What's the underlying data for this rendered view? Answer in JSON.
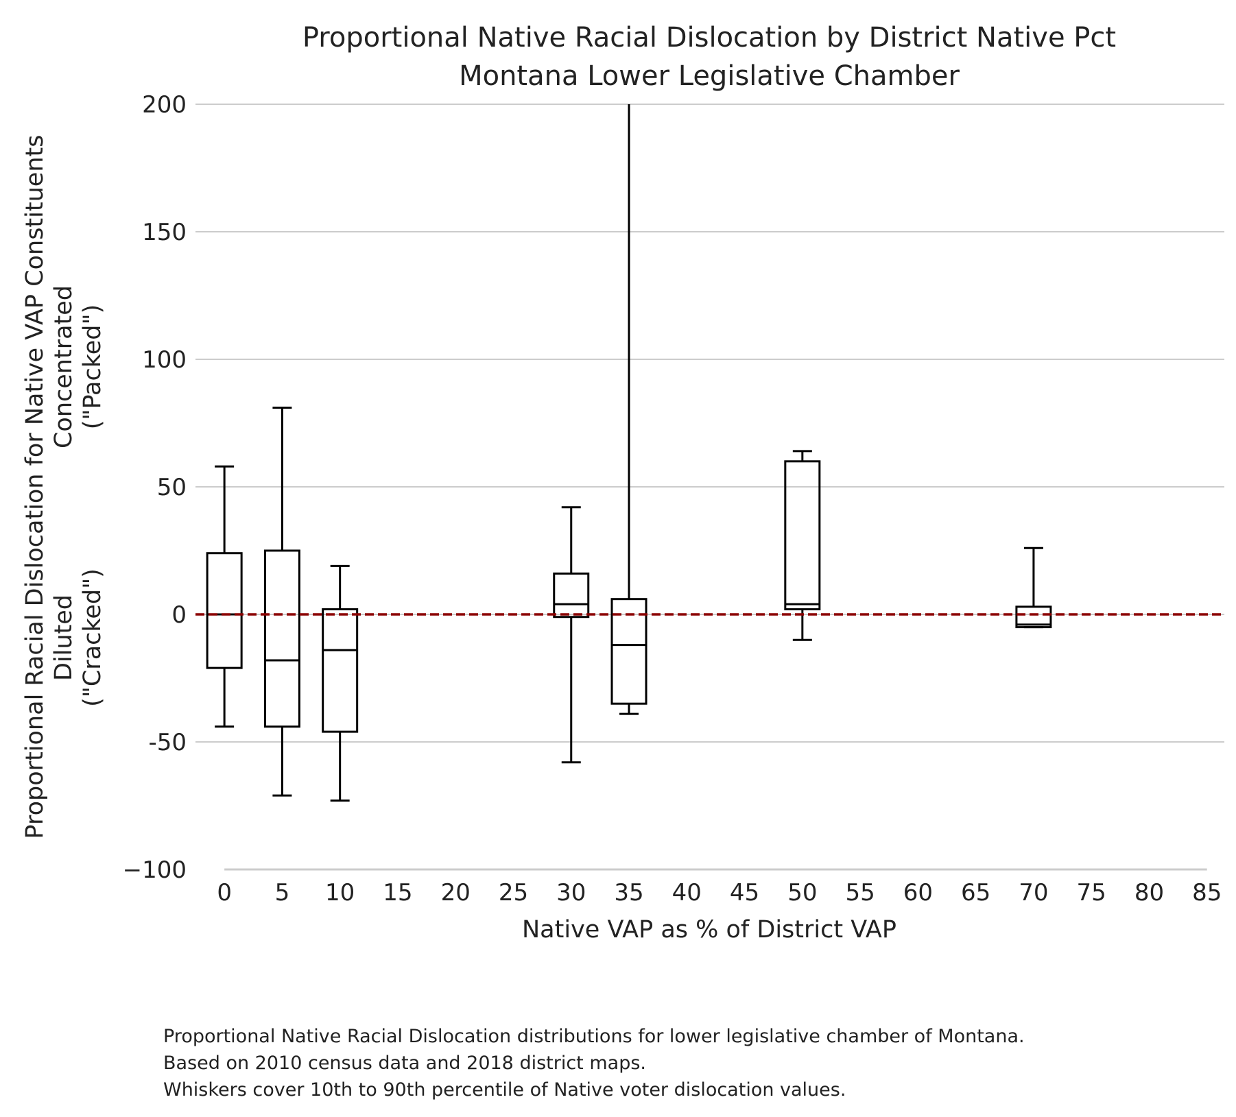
{
  "chart_data": {
    "type": "box",
    "title": "Proportional Native Racial Dislocation by District Native Pct",
    "subtitle": "Montana Lower Legislative Chamber",
    "xlabel": "Native VAP as % of District VAP",
    "ylabel_lines": [
      "Proportional Racial Dislocation for Native VAP Constituents",
      "Diluted                              Concentrated",
      "(\"Cracked\")                             (\"Packed\")"
    ],
    "ylabel": {
      "main": "Proportional Racial Dislocation for Native VAP Constituents",
      "concentrated": "Concentrated",
      "packed": "(\"Packed\")",
      "diluted": "Diluted",
      "cracked": "(\"Cracked\")"
    },
    "xlim": [
      -2.5,
      86.5
    ],
    "ylim": [
      -100,
      200
    ],
    "x_ticks": [
      0,
      5,
      10,
      15,
      20,
      25,
      30,
      35,
      40,
      45,
      50,
      55,
      60,
      65,
      70,
      75,
      80,
      85
    ],
    "y_ticks": [
      -100,
      -50,
      0,
      50,
      100,
      150,
      200
    ],
    "y_tick_labels": [
      "−100",
      "-50",
      "0",
      "50",
      "100",
      "150",
      "200"
    ],
    "grid": "horizontal",
    "reference_line": {
      "y": 0,
      "color": "#8b0000",
      "style": "dashed"
    },
    "boxes": [
      {
        "x": 0,
        "whisker_low": -44,
        "q1": -21,
        "median": 0,
        "q3": 24,
        "whisker_high": 58
      },
      {
        "x": 5,
        "whisker_low": -71,
        "q1": -44,
        "median": -18,
        "q3": 25,
        "whisker_high": 81
      },
      {
        "x": 10,
        "whisker_low": -73,
        "q1": -46,
        "median": -14,
        "q3": 2,
        "whisker_high": 19
      },
      {
        "x": 30,
        "whisker_low": -58,
        "q1": -1,
        "median": 4,
        "q3": 16,
        "whisker_high": 42
      },
      {
        "x": 35,
        "whisker_low": -39,
        "q1": -35,
        "median": -12,
        "q3": 6,
        "whisker_high": 200
      },
      {
        "x": 50,
        "whisker_low": -10,
        "q1": 2,
        "median": 4,
        "q3": 60,
        "whisker_high": 64
      },
      {
        "x": 70,
        "whisker_low": -5,
        "q1": -5,
        "median": -4,
        "q3": 3,
        "whisker_high": 26
      }
    ],
    "colors": {
      "box": "#000000",
      "grid": "#cccccc",
      "reference": "#8b0000",
      "text": "#222222"
    }
  },
  "caption": [
    "Proportional Native Racial Dislocation distributions for lower legislative chamber of Montana.",
    "Based on 2010 census data and 2018 district maps.",
    "Whiskers cover 10th to 90th percentile of Native voter dislocation values."
  ]
}
